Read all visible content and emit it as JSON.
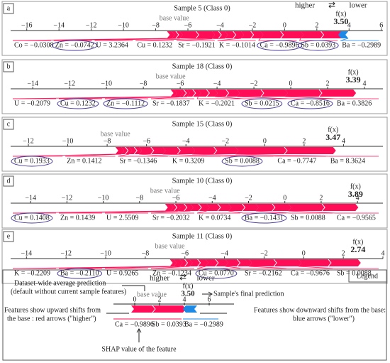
{
  "header": {
    "higher": "higher",
    "arrow": "⇄",
    "lower": "lower"
  },
  "colors": {
    "higher": "#ff0d57",
    "lower": "#1e88e5"
  },
  "chart_data": [
    {
      "type": "force",
      "letter": "a",
      "title": "Sample 5 (Class 0)",
      "base_label": "base value",
      "fx_name": "f(x)",
      "fx": 3.5,
      "fx_label": "3.50",
      "xlim": [
        -17,
        6.1
      ],
      "xticks": [
        {
          "value": -16,
          "label": "−16"
        },
        {
          "value": -14,
          "label": "−14"
        },
        {
          "value": -12,
          "label": "−12"
        },
        {
          "value": -10,
          "label": "−10"
        },
        {
          "value": -8,
          "label": "−8"
        },
        {
          "value": -6,
          "label": "−6"
        },
        {
          "value": -4,
          "label": "−4"
        },
        {
          "value": -2,
          "label": "−2"
        },
        0,
        2,
        4,
        6
      ],
      "features": [
        {
          "label": "Co = −0.0308",
          "value": 0.3,
          "circled": false
        },
        {
          "label": "Zn = −0.0742",
          "value": 0.5,
          "circled": true
        },
        {
          "label": "U = 3.2364",
          "value": 2.0,
          "circled": false
        },
        {
          "label": "Cu = 0.1232",
          "value": 0.8,
          "circled": false
        },
        {
          "label": "Sr = −0.1921",
          "value": 1.0,
          "circled": false
        },
        {
          "label": "K = −0.1014",
          "value": 1.2,
          "circled": false
        },
        {
          "label": "Ca = −0.9896",
          "value": 2.5,
          "circled": true
        },
        {
          "label": "Sb = 0.0393",
          "value": 2.5,
          "circled": true
        },
        {
          "label": "Ba = −0.2989",
          "value": -0.45,
          "circled": false
        }
      ]
    },
    {
      "type": "force",
      "letter": "b",
      "title": "Sample 18 (Class 0)",
      "base_label": "base value",
      "fx_name": "f(x)",
      "fx": 3.39,
      "xlim": [
        -15.2,
        5.0
      ],
      "xticks": [
        {
          "value": -14,
          "label": "−14"
        },
        {
          "value": -12,
          "label": "−12"
        },
        {
          "value": -10,
          "label": "−10"
        },
        {
          "value": -8,
          "label": "−8"
        },
        {
          "value": -6,
          "label": "−6"
        },
        {
          "value": -4,
          "label": "−4"
        },
        {
          "value": -2,
          "label": "−2"
        },
        0,
        2,
        4
      ],
      "features": [
        {
          "label": "U = −0.2079",
          "value": 0.2,
          "circled": false
        },
        {
          "label": "Cu = 0.1232",
          "value": 0.3,
          "circled": true
        },
        {
          "label": "Zn = −0.1112",
          "value": 0.4,
          "circled": true
        },
        {
          "label": "Sr = −0.1837",
          "value": 0.6,
          "circled": false
        },
        {
          "label": "K = −0.2021",
          "value": 0.9,
          "circled": false
        },
        {
          "label": "Sb = 0.0215",
          "value": 1.2,
          "circled": true
        },
        {
          "label": "Ca = −0.8516",
          "value": 2.6,
          "circled": true
        },
        {
          "label": "Ba = 0.3826",
          "value": 3.71,
          "circled": false
        }
      ]
    },
    {
      "type": "force",
      "letter": "c",
      "title": "Sample 15 (Class 0)",
      "base_label": "base value",
      "fx_name": "f(x)",
      "fx": 3.47,
      "xlim": [
        -12.9,
        6.0
      ],
      "xticks": [
        {
          "value": -12,
          "label": "−12"
        },
        {
          "value": -10,
          "label": "−10"
        },
        {
          "value": -8,
          "label": "−8"
        },
        {
          "value": -6,
          "label": "−6"
        },
        {
          "value": -4,
          "label": "−4"
        },
        {
          "value": -2,
          "label": "−2"
        },
        0,
        2,
        4
      ],
      "features": [
        {
          "label": "Cu = 0.1933",
          "value": 0.3,
          "circled": true
        },
        {
          "label": "Zn = 0.1412",
          "value": 0.4,
          "circled": false
        },
        {
          "label": "Sr = −0.1346",
          "value": 0.5,
          "circled": false
        },
        {
          "label": "K = 0.3209",
          "value": 1.2,
          "circled": false
        },
        {
          "label": "Sb = 0.0088",
          "value": 1.5,
          "circled": true
        },
        {
          "label": "Ca = −0.7747",
          "value": 2.2,
          "circled": false
        },
        {
          "label": "Ba = 8.3624",
          "value": 4.95,
          "circled": false
        }
      ]
    },
    {
      "type": "force",
      "letter": "d",
      "title": "Sample 10 (Class 0)",
      "base_label": "base value",
      "fx_name": "f(x)",
      "fx": 3.89,
      "xlim": [
        -15.1,
        5.4
      ],
      "xticks": [
        {
          "value": -14,
          "label": "−14"
        },
        {
          "value": -12,
          "label": "−12"
        },
        {
          "value": -10,
          "label": "−10"
        },
        {
          "value": -8,
          "label": "−8"
        },
        {
          "value": -6,
          "label": "−6"
        },
        {
          "value": -4,
          "label": "−4"
        },
        {
          "value": -2,
          "label": "−2"
        },
        0,
        2,
        4
      ],
      "features": [
        {
          "label": "Cu = 0.1408",
          "value": 0.3,
          "circled": true
        },
        {
          "label": "Zn = 0.1439",
          "value": 0.4,
          "circled": false
        },
        {
          "label": "U = 2.5509",
          "value": 0.7,
          "circled": false
        },
        {
          "label": "Sr = −0.2032",
          "value": 0.9,
          "circled": false
        },
        {
          "label": "K = 0.0734",
          "value": 1.2,
          "circled": false
        },
        {
          "label": "Ba = −0.1431",
          "value": 1.5,
          "circled": true
        },
        {
          "label": "Sb = 0.0088",
          "value": 1.8,
          "circled": false
        },
        {
          "label": "Ca = −0.9565",
          "value": 3.69,
          "circled": false
        }
      ]
    },
    {
      "type": "force",
      "letter": "e",
      "title": "Sample 11 (Class 0)",
      "base_label": "base value",
      "fx_name": "f(x)",
      "fx": 2.74,
      "xlim": [
        -14.8,
        4.0
      ],
      "xticks": [
        {
          "value": -14,
          "label": "−14"
        },
        {
          "value": -12,
          "label": "−12"
        },
        {
          "value": -10,
          "label": "−10"
        },
        {
          "value": -8,
          "label": "−8"
        },
        {
          "value": -6,
          "label": "−6"
        },
        {
          "value": -4,
          "label": "−4"
        },
        {
          "value": -2,
          "label": "−2"
        },
        0,
        2,
        4
      ],
      "features": [
        {
          "label": "K = −0.2209",
          "value": 0.2,
          "circled": false
        },
        {
          "label": "Ba = −0.2110",
          "value": 0.3,
          "circled": true
        },
        {
          "label": "U = 0.9265",
          "value": 0.5,
          "circled": false
        },
        {
          "label": "Zn = −0.1234",
          "value": 0.8,
          "circled": false
        },
        {
          "label": "Cu = 0.0770",
          "value": 1.0,
          "circled": true
        },
        {
          "label": "Sr = −0.2162",
          "value": 1.2,
          "circled": false
        },
        {
          "label": "Ca = −0.9676",
          "value": 2.5,
          "circled": false
        },
        {
          "label": "Sb = 0.0088",
          "value": 3.0,
          "circled": false
        }
      ]
    }
  ],
  "legend": {
    "title": "Legend",
    "higher": "higher",
    "arrow": "⇄",
    "lower": "lower",
    "avg1": "Dataset-wide average prediction",
    "avg2": "(default without current sample features)",
    "base": "base value",
    "fx_name": "f(x)",
    "fx": "3.50",
    "final": "Sample's final prediction",
    "up1": "Features show upward shifts from",
    "up2": "the base : red arrows (\"higher\")",
    "down1": "Features show downward shifts from the base:",
    "down2": "blue arrows (\"lower\")",
    "ticks": [
      "0",
      "2",
      "4",
      "6"
    ],
    "f1": "Ca = −0.9896",
    "f2": "Sb = 0.0393",
    "f3": "Ba = −0.2989",
    "shap": "SHAP value of the feature"
  }
}
